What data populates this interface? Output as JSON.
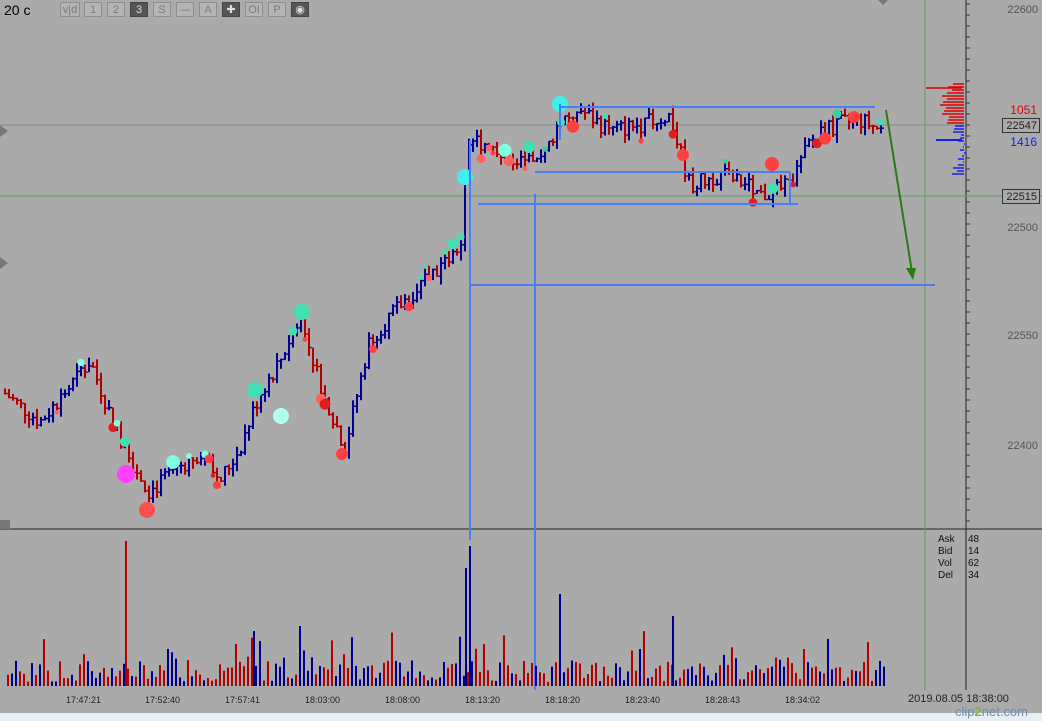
{
  "chart_title": "20 c",
  "toolbar": {
    "buttons": [
      {
        "label": "v|d",
        "active": false
      },
      {
        "label": "1",
        "active": false
      },
      {
        "label": "2",
        "active": false
      },
      {
        "label": "3",
        "active": true
      },
      {
        "label": "S",
        "active": false
      },
      {
        "label": "—",
        "active": false
      },
      {
        "label": "A",
        "active": false
      },
      {
        "label": "✚",
        "active": true
      },
      {
        "label": "OI",
        "active": false
      },
      {
        "label": "P",
        "active": false
      },
      {
        "label": "◉",
        "active": true
      }
    ]
  },
  "price_axis": {
    "ticks": [
      22600,
      22550,
      22500,
      22450,
      22400
    ],
    "tick_labels": [
      "22600",
      "22550",
      "22500",
      "22450",
      "22400"
    ],
    "ask_volume": "1051",
    "bid_volume": "1416",
    "current_price": "22547",
    "cursor_price": "22515"
  },
  "stats": {
    "rows": [
      {
        "key": "Ask",
        "value": "48"
      },
      {
        "key": "Bid",
        "value": "14"
      },
      {
        "key": "Vol",
        "value": "62"
      },
      {
        "key": "Del",
        "value": "34"
      }
    ]
  },
  "time_axis": {
    "labels": [
      "17:47:21",
      "17:52:40",
      "17:57:41",
      "18:03:00",
      "18:08:00",
      "18:13:20",
      "18:18:20",
      "18:23:40",
      "18:28:43",
      "18:34:02"
    ],
    "partial_date": "2019.08.05 18:38:00"
  },
  "watermark": {
    "text_a": "clip",
    "text_b": "2",
    "text_c": "net.com"
  },
  "colors": {
    "background": "#aaaaaa",
    "up_bar": "#000090",
    "down_bar": "#b00000",
    "level_line": "#4a7ef5",
    "arrow": "#2a7a18",
    "cursor_line": "#5aa05a"
  },
  "chart_data": {
    "type": "bar",
    "title": "20 c",
    "y_range": [
      22370,
      22615
    ],
    "series_shape": "rises from 22400 to 22560 then consolidates between 22520 and 22555",
    "levels": [
      22555,
      22526,
      22512,
      22475
    ],
    "volume_spike_times": [
      "17:52:40",
      "18:13:20",
      "18:18:20",
      "18:23:40"
    ]
  }
}
